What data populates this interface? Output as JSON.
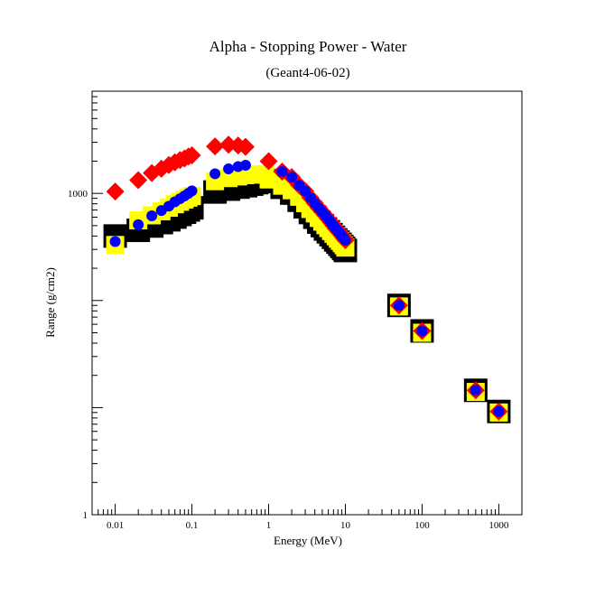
{
  "chart_data": {
    "type": "scatter",
    "title": "Alpha - Stopping Power - Water",
    "subtitle": "(Geant4-06-02)",
    "xlabel": "Energy (MeV)",
    "ylabel": "Range (g/cm2)",
    "x_scale": "log",
    "y_scale": "log",
    "xlim": [
      0.005,
      2000
    ],
    "ylim": [
      1,
      9000
    ],
    "grid": false,
    "legend": "none",
    "x_ticks": [
      {
        "value": 0.01,
        "label": "0.01"
      },
      {
        "value": 0.1,
        "label": "0.1"
      },
      {
        "value": 1,
        "label": "1"
      },
      {
        "value": 10,
        "label": "10"
      },
      {
        "value": 100,
        "label": "100"
      },
      {
        "value": 1000,
        "label": "1000"
      }
    ],
    "y_ticks": [
      {
        "value": 1,
        "label": "1"
      },
      {
        "value": 1000,
        "label": "1000"
      }
    ],
    "series": [
      {
        "marker": "black-square",
        "color": "#000000",
        "points": [
          [
            0.01,
            400
          ],
          [
            0.02,
            452
          ],
          [
            0.03,
            496
          ],
          [
            0.04,
            534
          ],
          [
            0.05,
            567
          ],
          [
            0.06,
            601
          ],
          [
            0.07,
            636
          ],
          [
            0.08,
            667
          ],
          [
            0.09,
            701
          ],
          [
            0.1,
            734
          ],
          [
            0.2,
            1031
          ],
          [
            0.3,
            1096
          ],
          [
            0.4,
            1145
          ],
          [
            0.5,
            1180
          ],
          [
            0.6,
            1220
          ],
          [
            0.7,
            1260
          ],
          [
            0.8,
            1290
          ],
          [
            0.9,
            1310
          ],
          [
            1,
            1300
          ],
          [
            1.5,
            1140
          ],
          [
            2,
            1006
          ],
          [
            2.5,
            863
          ],
          [
            3,
            750
          ],
          [
            3.5,
            663
          ],
          [
            4,
            599
          ],
          [
            4.5,
            540
          ],
          [
            5,
            500
          ],
          [
            5.5,
            465
          ],
          [
            6,
            438
          ],
          [
            6.5,
            412
          ],
          [
            7,
            389
          ],
          [
            7.5,
            368
          ],
          [
            8,
            351
          ],
          [
            8.5,
            335
          ],
          [
            9,
            320
          ],
          [
            9.5,
            306
          ],
          [
            10,
            293
          ],
          [
            50,
            90
          ],
          [
            100,
            52
          ],
          [
            500,
            14.5
          ],
          [
            1000,
            9.2
          ]
        ]
      },
      {
        "marker": "yellow-square",
        "color": "#ffff00",
        "points": [
          [
            0.01,
            330
          ],
          [
            0.02,
            560
          ],
          [
            0.03,
            624
          ],
          [
            0.04,
            680
          ],
          [
            0.05,
            735
          ],
          [
            0.06,
            792
          ],
          [
            0.07,
            836
          ],
          [
            0.08,
            876
          ],
          [
            0.09,
            912
          ],
          [
            0.1,
            944
          ],
          [
            0.2,
            1300
          ],
          [
            0.3,
            1390
          ],
          [
            0.4,
            1440
          ],
          [
            0.5,
            1480
          ],
          [
            0.6,
            1500
          ],
          [
            0.7,
            1510
          ],
          [
            0.8,
            1510
          ],
          [
            0.9,
            1500
          ],
          [
            1,
            1350
          ],
          [
            1.5,
            1180
          ],
          [
            2,
            1070
          ],
          [
            2.5,
            930
          ],
          [
            3,
            810
          ],
          [
            3.5,
            715
          ],
          [
            4,
            650
          ],
          [
            4.5,
            590
          ],
          [
            5,
            545
          ],
          [
            5.5,
            505
          ],
          [
            6,
            474
          ],
          [
            6.5,
            445
          ],
          [
            7,
            420
          ],
          [
            7.5,
            398
          ],
          [
            8,
            377
          ],
          [
            8.5,
            360
          ],
          [
            9,
            343
          ],
          [
            9.5,
            328
          ],
          [
            10,
            312
          ],
          [
            50,
            88
          ],
          [
            100,
            50
          ],
          [
            500,
            14
          ],
          [
            1000,
            9
          ]
        ]
      },
      {
        "marker": "red-diamond",
        "color": "#ff0000",
        "points": [
          [
            0.01,
            1040
          ],
          [
            0.02,
            1330
          ],
          [
            0.03,
            1550
          ],
          [
            0.04,
            1700
          ],
          [
            0.05,
            1840
          ],
          [
            0.06,
            1950
          ],
          [
            0.07,
            2050
          ],
          [
            0.08,
            2120
          ],
          [
            0.09,
            2210
          ],
          [
            0.1,
            2270
          ],
          [
            0.2,
            2750
          ],
          [
            0.3,
            2850
          ],
          [
            0.4,
            2800
          ],
          [
            0.5,
            2720
          ],
          [
            1,
            2000
          ],
          [
            1.5,
            1600
          ],
          [
            2,
            1420
          ],
          [
            2.5,
            1190
          ],
          [
            3,
            1050
          ],
          [
            3.5,
            910
          ],
          [
            4,
            810
          ],
          [
            4.5,
            730
          ],
          [
            5,
            670
          ],
          [
            5.5,
            620
          ],
          [
            6,
            575
          ],
          [
            6.5,
            535
          ],
          [
            7,
            500
          ],
          [
            7.5,
            470
          ],
          [
            8,
            446
          ],
          [
            8.5,
            424
          ],
          [
            9,
            403
          ],
          [
            9.5,
            384
          ],
          [
            10,
            366
          ],
          [
            50,
            90
          ],
          [
            100,
            52
          ],
          [
            500,
            14.5
          ],
          [
            1000,
            9.2
          ]
        ]
      },
      {
        "marker": "blue-circle",
        "color": "#0000ff",
        "points": [
          [
            0.01,
            355
          ],
          [
            0.02,
            510
          ],
          [
            0.03,
            618
          ],
          [
            0.04,
            692
          ],
          [
            0.05,
            760
          ],
          [
            0.06,
            835
          ],
          [
            0.07,
            892
          ],
          [
            0.08,
            946
          ],
          [
            0.09,
            1000
          ],
          [
            0.1,
            1055
          ],
          [
            0.2,
            1525
          ],
          [
            0.3,
            1695
          ],
          [
            0.4,
            1780
          ],
          [
            0.5,
            1830
          ],
          [
            1.5,
            1600
          ],
          [
            2,
            1420
          ],
          [
            2.5,
            1190
          ],
          [
            3,
            1050
          ],
          [
            3.5,
            910
          ],
          [
            4,
            810
          ],
          [
            4.5,
            730
          ],
          [
            5,
            670
          ],
          [
            5.5,
            620
          ],
          [
            6,
            575
          ],
          [
            6.5,
            535
          ],
          [
            7,
            500
          ],
          [
            7.5,
            470
          ],
          [
            8,
            446
          ],
          [
            8.5,
            424
          ],
          [
            9,
            403
          ],
          [
            9.5,
            384
          ],
          [
            10,
            366
          ],
          [
            50,
            90
          ],
          [
            100,
            52
          ],
          [
            500,
            14.5
          ],
          [
            1000,
            9.2
          ]
        ]
      }
    ]
  }
}
